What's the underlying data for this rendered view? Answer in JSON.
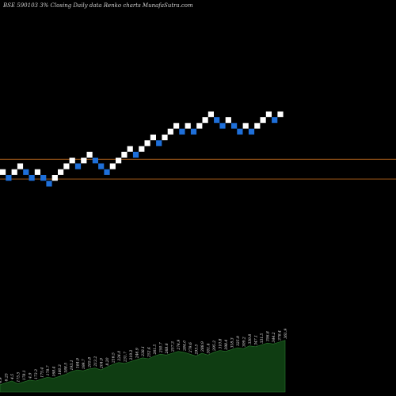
{
  "header": {
    "title": "BSE 590103 3% Closing Daily data Renko charts MunafaSutra.com"
  },
  "colors": {
    "background": "#000000",
    "up_brick": "#ffffff",
    "down_brick": "#1e6fd9",
    "reference_line": "#b5651d",
    "volume_fill": "#0f3d12",
    "volume_edge": "#2a7a2e",
    "label_text": "#e6e6e6"
  },
  "chart_data": {
    "type": "renko",
    "brick_size": "3%",
    "bricks": [
      {
        "d": "up",
        "level": 1
      },
      {
        "d": "down",
        "level": 0
      },
      {
        "d": "up",
        "level": 1
      },
      {
        "d": "up",
        "level": 2
      },
      {
        "d": "down",
        "level": 1
      },
      {
        "d": "down",
        "level": 0
      },
      {
        "d": "up",
        "level": 1
      },
      {
        "d": "down",
        "level": 0
      },
      {
        "d": "down",
        "level": -1
      },
      {
        "d": "up",
        "level": 0
      },
      {
        "d": "up",
        "level": 1
      },
      {
        "d": "up",
        "level": 2
      },
      {
        "d": "up",
        "level": 3
      },
      {
        "d": "down",
        "level": 2
      },
      {
        "d": "up",
        "level": 3
      },
      {
        "d": "up",
        "level": 4
      },
      {
        "d": "down",
        "level": 3
      },
      {
        "d": "down",
        "level": 2
      },
      {
        "d": "down",
        "level": 1
      },
      {
        "d": "up",
        "level": 2
      },
      {
        "d": "up",
        "level": 3
      },
      {
        "d": "up",
        "level": 4
      },
      {
        "d": "up",
        "level": 5
      },
      {
        "d": "down",
        "level": 4
      },
      {
        "d": "up",
        "level": 5
      },
      {
        "d": "up",
        "level": 6
      },
      {
        "d": "up",
        "level": 7
      },
      {
        "d": "down",
        "level": 6
      },
      {
        "d": "up",
        "level": 7
      },
      {
        "d": "up",
        "level": 8
      },
      {
        "d": "up",
        "level": 9
      },
      {
        "d": "down",
        "level": 8
      },
      {
        "d": "up",
        "level": 9
      },
      {
        "d": "down",
        "level": 8
      },
      {
        "d": "up",
        "level": 9
      },
      {
        "d": "up",
        "level": 10
      },
      {
        "d": "up",
        "level": 11
      },
      {
        "d": "down",
        "level": 10
      },
      {
        "d": "down",
        "level": 9
      },
      {
        "d": "up",
        "level": 10
      },
      {
        "d": "down",
        "level": 9
      },
      {
        "d": "down",
        "level": 8
      },
      {
        "d": "up",
        "level": 9
      },
      {
        "d": "down",
        "level": 8
      },
      {
        "d": "up",
        "level": 9
      },
      {
        "d": "up",
        "level": 10
      },
      {
        "d": "up",
        "level": 11
      },
      {
        "d": "down",
        "level": 10
      },
      {
        "d": "up",
        "level": 11
      }
    ],
    "reference_levels": [
      3.2,
      -0.2
    ],
    "volume": {
      "values": [
        8,
        10,
        12,
        9,
        11,
        13,
        12,
        14,
        16,
        15,
        17,
        19,
        22,
        24,
        23,
        25,
        26,
        24,
        27,
        30,
        32,
        31,
        33,
        35,
        37,
        36,
        39,
        41,
        40,
        42,
        44,
        43,
        41,
        39,
        42,
        40,
        43,
        45,
        44,
        46,
        48,
        47,
        50,
        49,
        51,
        53,
        52,
        54,
        56
      ],
      "labels": [
        "4.9",
        "6.25",
        "4.5",
        "175.5",
        "178.1",
        "4.9",
        "173.3",
        "175.4",
        "178.7",
        "168.4",
        "180.3",
        "188.5",
        "193.1",
        "184.9",
        "199.7",
        "205.8",
        "213.2",
        "204.9",
        "8.20",
        "216.5",
        "224.0",
        "231.7",
        "219.2",
        "246.9",
        "238.1",
        "252.4",
        "261.5",
        "250.7",
        "268.6",
        "257.3",
        "274.9",
        "284.0",
        "279.6",
        "293.5",
        "288.9",
        "301.4",
        "295.2",
        "310.8",
        "298.4",
        "318.3",
        "325.9",
        "309.2",
        "339.8",
        "347.1",
        "331.5",
        "356.8",
        "344.2",
        "378.4",
        "361.9"
      ],
      "max": 60
    }
  }
}
